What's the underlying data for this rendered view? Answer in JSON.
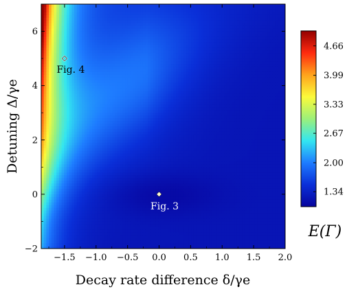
{
  "chart_data": {
    "type": "heatmap",
    "xlabel": "Decay rate difference δ/γe",
    "ylabel": "Detuning Δ/γe",
    "xlim": [
      -1.87,
      2.0
    ],
    "ylim": [
      -2.0,
      7.0
    ],
    "x_ticks": [
      -1.5,
      -1.0,
      -0.5,
      0.0,
      0.5,
      1.0,
      1.5,
      2.0
    ],
    "x_tick_labels": [
      "−1.5",
      "−1.0",
      "−0.5",
      "0.0",
      "0.5",
      "1.0",
      "1.5",
      "2.0"
    ],
    "y_ticks": [
      -2,
      0,
      2,
      4,
      6
    ],
    "y_tick_labels": [
      "−2",
      "0",
      "2",
      "4",
      "6"
    ],
    "colorbar": {
      "label": "E(Γ)",
      "range": [
        1.0,
        5.0
      ],
      "ticks": [
        1.34,
        2.0,
        2.67,
        3.33,
        3.99,
        4.66
      ],
      "tick_labels": [
        "1.34",
        "2.00",
        "2.67",
        "3.33",
        "3.99",
        "4.66"
      ],
      "colormap": [
        "#07049e",
        "#0a2fd8",
        "#1e7cff",
        "#33e6f0",
        "#9cf07a",
        "#fbfa3a",
        "#ffa31c",
        "#ff2a0f",
        "#940000"
      ]
    },
    "markers": [
      {
        "label": "Fig. 4",
        "x": -1.5,
        "y": 5.0,
        "style": "open-diamond"
      },
      {
        "label": "Fig. 3",
        "x": 0.0,
        "y": 0.0,
        "style": "filled-diamond"
      }
    ],
    "legend": "colorbar-right",
    "grid": false
  }
}
